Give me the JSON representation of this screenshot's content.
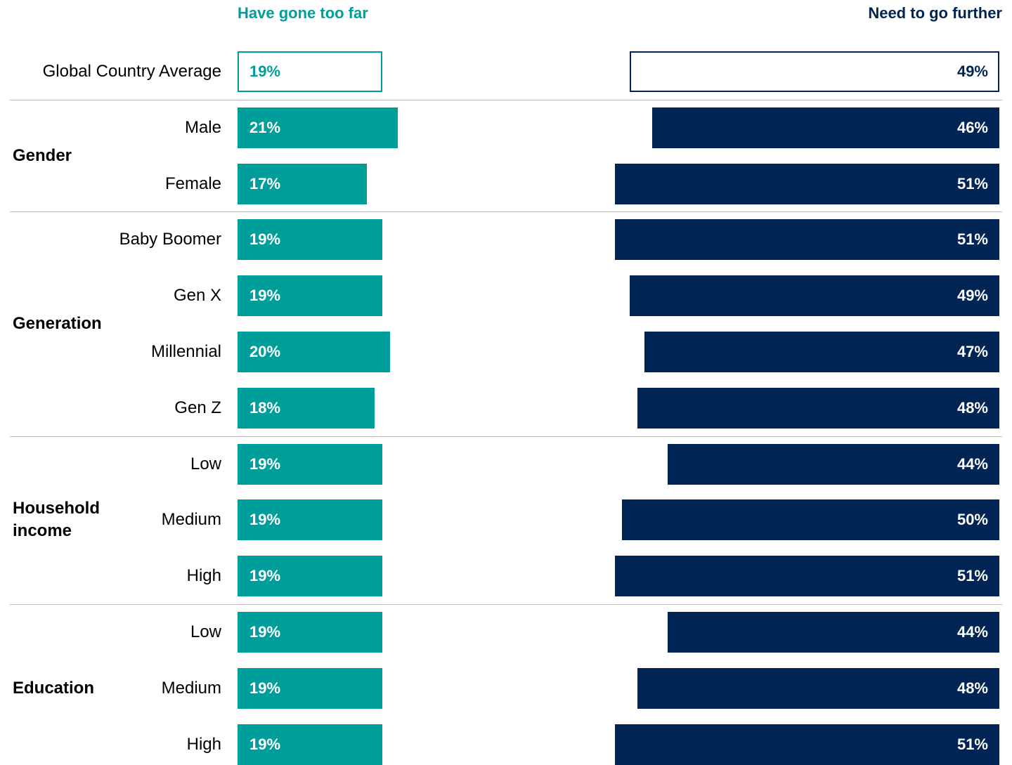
{
  "chart_data": {
    "type": "bar",
    "series": [
      {
        "name": "Have gone too far",
        "color": "#009e9a"
      },
      {
        "name": "Need to go further",
        "color": "#002554"
      }
    ],
    "rows": [
      {
        "group": "",
        "label": "Global Country Average",
        "values": [
          19,
          49
        ],
        "display": [
          "19%",
          "49%"
        ],
        "style": "outline"
      },
      {
        "group": "Gender",
        "label": "Male",
        "values": [
          21,
          46
        ],
        "display": [
          "21%",
          "46%"
        ]
      },
      {
        "group": "Gender",
        "label": "Female",
        "values": [
          17,
          51
        ],
        "display": [
          "17%",
          "51%"
        ]
      },
      {
        "group": "Generation",
        "label": "Baby Boomer",
        "values": [
          19,
          51
        ],
        "display": [
          "19%",
          "51%"
        ]
      },
      {
        "group": "Generation",
        "label": "Gen X",
        "values": [
          19,
          49
        ],
        "display": [
          "19%",
          "49%"
        ]
      },
      {
        "group": "Generation",
        "label": "Millennial",
        "values": [
          20,
          47
        ],
        "display": [
          "20%",
          "47%"
        ]
      },
      {
        "group": "Generation",
        "label": "Gen Z",
        "values": [
          18,
          48
        ],
        "display": [
          "18%",
          "48%"
        ]
      },
      {
        "group": "Household income",
        "label": "Low",
        "values": [
          19,
          44
        ],
        "display": [
          "19%",
          "44%"
        ]
      },
      {
        "group": "Household income",
        "label": "Medium",
        "values": [
          19,
          50
        ],
        "display": [
          "19%",
          "50%"
        ]
      },
      {
        "group": "Household income",
        "label": "High",
        "values": [
          19,
          51
        ],
        "display": [
          "19%",
          "51%"
        ]
      },
      {
        "group": "Education",
        "label": "Low",
        "values": [
          19,
          44
        ],
        "display": [
          "19%",
          "44%"
        ]
      },
      {
        "group": "Education",
        "label": "Medium",
        "values": [
          19,
          48
        ],
        "display": [
          "19%",
          "48%"
        ]
      },
      {
        "group": "Education",
        "label": "High",
        "values": [
          19,
          51
        ],
        "display": [
          "19%",
          "51%"
        ]
      }
    ],
    "groups": [
      {
        "name": "Gender",
        "lines": [
          "Gender"
        ]
      },
      {
        "name": "Generation",
        "lines": [
          "Generation"
        ]
      },
      {
        "name": "Household income",
        "lines": [
          "Household",
          "income"
        ]
      },
      {
        "name": "Education",
        "lines": [
          "Education"
        ]
      }
    ]
  }
}
